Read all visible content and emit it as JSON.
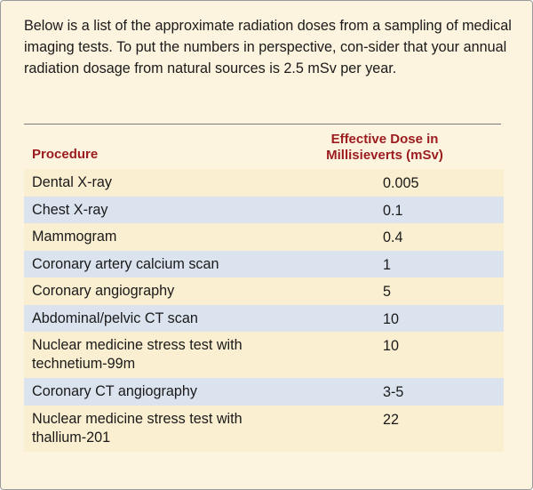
{
  "intro": "Below is a list of the approximate radiation doses from a sampling of medical imaging tests. To put the numbers in perspective, con-sider that your annual radiation dosage from natural sources is 2.5 mSv per year.",
  "table": {
    "headers": {
      "procedure": "Procedure",
      "dose": "Effective Dose in Millisieverts (mSv)"
    },
    "rows": [
      {
        "procedure": "Dental X-ray",
        "dose": "0.005"
      },
      {
        "procedure": "Chest X-ray",
        "dose": "0.1"
      },
      {
        "procedure": "Mammogram",
        "dose": "0.4"
      },
      {
        "procedure": "Coronary artery calcium scan",
        "dose": "1"
      },
      {
        "procedure": "Coronary angiography",
        "dose": "5"
      },
      {
        "procedure": "Abdominal/pelvic CT scan",
        "dose": "10"
      },
      {
        "procedure": "Nuclear medicine stress test with technetium-99m",
        "dose": "10"
      },
      {
        "procedure": "Coronary CT angiography",
        "dose": "3-5"
      },
      {
        "procedure": "Nuclear medicine stress test with thallium-201",
        "dose": "22"
      }
    ]
  }
}
